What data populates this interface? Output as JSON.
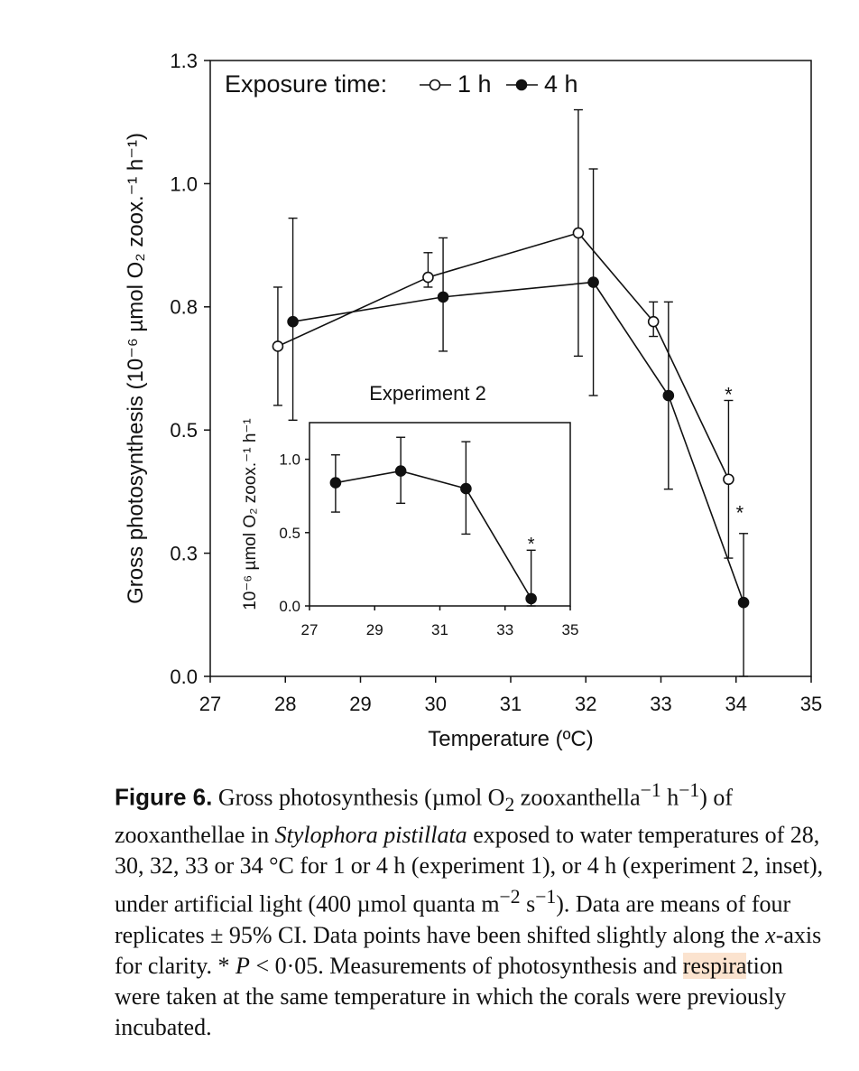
{
  "chart_data": [
    {
      "id": "main",
      "type": "line",
      "xlabel": "Temperature (ºC)",
      "ylabel": "Gross photosynthesis (10⁻⁶ µmol O₂ zoox.⁻¹ h⁻¹)",
      "xlim": [
        27,
        35
      ],
      "ylim": [
        0.0,
        1.25
      ],
      "x_ticks": [
        "27",
        "28",
        "29",
        "30",
        "31",
        "32",
        "33",
        "34",
        "35"
      ],
      "y_ticks": [
        "0.0",
        "0.3",
        "0.5",
        "0.8",
        "1.0",
        "1.3"
      ],
      "y_tick_values": [
        0.0,
        0.25,
        0.5,
        0.75,
        1.0,
        1.25
      ],
      "legend": {
        "title": "Exposure time:",
        "position": "top"
      },
      "series": [
        {
          "name": "1 h",
          "marker": "open-circle",
          "x": [
            27.9,
            29.9,
            31.9,
            32.9,
            33.9
          ],
          "y": [
            0.67,
            0.81,
            0.9,
            0.72,
            0.4
          ],
          "err_low": [
            0.55,
            0.79,
            0.65,
            0.69,
            0.24
          ],
          "err_high": [
            0.79,
            0.86,
            1.15,
            0.76,
            0.56
          ]
        },
        {
          "name": "4 h",
          "marker": "filled-circle",
          "x": [
            28.1,
            30.1,
            32.1,
            33.1,
            34.1
          ],
          "y": [
            0.72,
            0.77,
            0.8,
            0.57,
            0.15
          ],
          "err_low": [
            0.52,
            0.66,
            0.57,
            0.38,
            0.0
          ],
          "err_high": [
            0.93,
            0.89,
            1.03,
            0.76,
            0.29
          ]
        }
      ],
      "annotations": [
        {
          "text": "*",
          "x": 33.9,
          "y": 0.58
        },
        {
          "text": "*",
          "x": 34.05,
          "y": 0.34
        }
      ]
    },
    {
      "id": "inset",
      "type": "line",
      "title": "Experiment 2",
      "xlabel": "",
      "ylabel": "10⁻⁶ µmol O₂ zoox.⁻¹ h⁻¹",
      "xlim": [
        27,
        35
      ],
      "ylim": [
        0.0,
        1.25
      ],
      "x_ticks": [
        "27",
        "29",
        "31",
        "33",
        "35"
      ],
      "y_ticks": [
        "0.0",
        "0.5",
        "1.0"
      ],
      "y_tick_values": [
        0.0,
        0.5,
        1.0
      ],
      "series": [
        {
          "name": "",
          "marker": "filled-circle",
          "x": [
            27.8,
            29.8,
            31.8,
            33.8
          ],
          "y": [
            0.84,
            0.92,
            0.8,
            0.05
          ],
          "err_low": [
            0.64,
            0.7,
            0.49,
            0.0
          ],
          "err_high": [
            1.03,
            1.15,
            1.12,
            0.38
          ]
        }
      ],
      "annotations": [
        {
          "text": "*",
          "x": 33.8,
          "y": 0.45
        }
      ]
    }
  ],
  "legend_items": {
    "title": "Exposure time:",
    "item1": "1 h",
    "item2": "4 h"
  },
  "caption": {
    "lead": "Figure 6.",
    "text_a": " Gross photosynthesis (µmol O",
    "sub_a": "2",
    "text_b": " zooxanthella",
    "sup_b": "−1",
    "text_c": " h",
    "sup_c": "−1",
    "text_d": ") of zooxanthellae in ",
    "species": "Stylophora pistillata",
    "text_e": " exposed to water temperatures of 28, 30, 32, 33 or 34 °C for 1 or 4 h (experiment 1), or 4 h (experiment 2, inset), under artificial light (400 µmol quanta m",
    "sup_e": "−2",
    "text_f": " s",
    "sup_f": "−1",
    "text_g": "). Data are means of four replicates ± 95% CI. Data points have been shifted slightly along the ",
    "xaxis_word": "x",
    "text_h": "-axis for clarity. * ",
    "p_word": "P",
    "text_i": " < 0·05. Measurements of photosynthesis and ",
    "highlight": "respira",
    "text_j": "tion were taken at the same temperature in which the corals were previously incubated."
  },
  "colors": {
    "axis": "#111111",
    "highlight": "#fbe3cf",
    "background": "#ffffff"
  }
}
